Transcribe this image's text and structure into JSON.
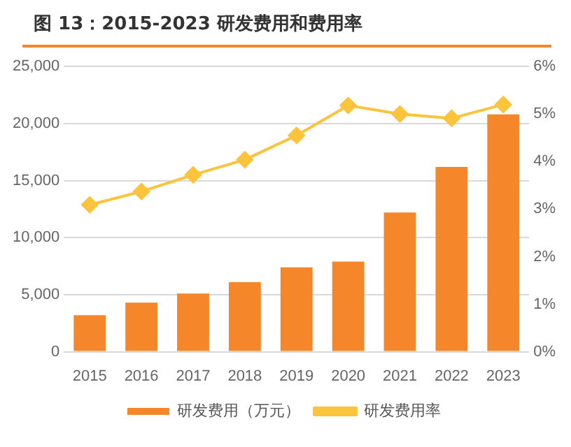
{
  "chart_data": {
    "type": "bar",
    "title": "图 13：2015-2023 研发费用和费用率",
    "categories": [
      "2015",
      "2016",
      "2017",
      "2018",
      "2019",
      "2020",
      "2021",
      "2022",
      "2023"
    ],
    "series": [
      {
        "name": "研发费用（万元）",
        "color": "#f5862a",
        "values": [
          3200,
          4300,
          5100,
          6100,
          7400,
          7900,
          12200,
          16200,
          20800
        ]
      },
      {
        "name": "研发费用率",
        "type": "line",
        "axis": "y2",
        "color": "#fcc43c",
        "marker": "diamond",
        "values": [
          3.09,
          3.37,
          3.72,
          4.04,
          4.55,
          5.18,
          5.0,
          4.91,
          5.2
        ]
      }
    ],
    "ylim": [
      0,
      25000
    ],
    "yticks": [
      {
        "value": 0,
        "label": "0"
      },
      {
        "value": 5000,
        "label": "5,000"
      },
      {
        "value": 10000,
        "label": "10,000"
      },
      {
        "value": 15000,
        "label": "15,000"
      },
      {
        "value": 20000,
        "label": "20,000"
      },
      {
        "value": 25000,
        "label": "25,000"
      }
    ],
    "y2lim": [
      0,
      6
    ],
    "y2ticks": [
      {
        "value": 0,
        "label": "0%"
      },
      {
        "value": 1,
        "label": "1%"
      },
      {
        "value": 2,
        "label": "2%"
      },
      {
        "value": 3,
        "label": "3%"
      },
      {
        "value": 4,
        "label": "4%"
      },
      {
        "value": 5,
        "label": "5%"
      },
      {
        "value": 6,
        "label": "6%"
      }
    ],
    "grid": "y",
    "legend": "bottom"
  }
}
